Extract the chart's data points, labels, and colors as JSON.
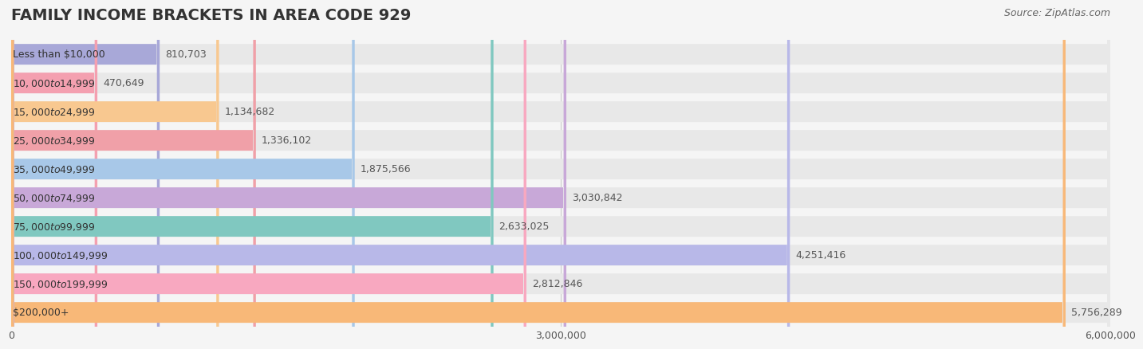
{
  "title": "FAMILY INCOME BRACKETS IN AREA CODE 929",
  "source": "Source: ZipAtlas.com",
  "categories": [
    "Less than $10,000",
    "$10,000 to $14,999",
    "$15,000 to $24,999",
    "$25,000 to $34,999",
    "$35,000 to $49,999",
    "$50,000 to $74,999",
    "$75,000 to $99,999",
    "$100,000 to $149,999",
    "$150,000 to $199,999",
    "$200,000+"
  ],
  "values": [
    810703,
    470649,
    1134682,
    1336102,
    1875566,
    3030842,
    2633025,
    4251416,
    2812846,
    5756289
  ],
  "bar_colors": [
    "#a8a8d8",
    "#f4a0b0",
    "#f8c890",
    "#f0a0a8",
    "#a8c8e8",
    "#c8a8d8",
    "#80c8c0",
    "#b8b8e8",
    "#f8a8c0",
    "#f8b878"
  ],
  "value_labels": [
    "810,703",
    "470,649",
    "1,134,682",
    "1,336,102",
    "1,875,566",
    "3,030,842",
    "2,633,025",
    "4,251,416",
    "2,812,846",
    "5,756,289"
  ],
  "xlim": [
    0,
    6000000
  ],
  "xticks": [
    0,
    3000000,
    6000000
  ],
  "xtick_labels": [
    "0",
    "3,000,000",
    "6,000,000"
  ],
  "background_color": "#f5f5f5",
  "bar_background_color": "#e8e8e8",
  "title_fontsize": 14,
  "label_fontsize": 9,
  "value_fontsize": 9,
  "source_fontsize": 9
}
